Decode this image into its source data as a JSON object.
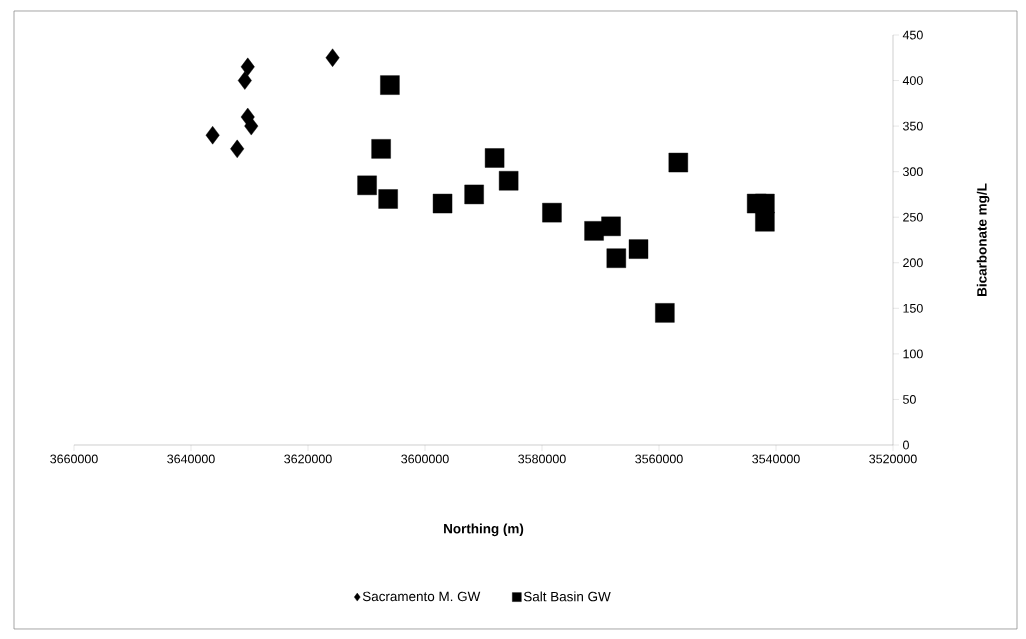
{
  "chart_data": {
    "type": "scatter",
    "xlabel": "Northing (m)",
    "ylabel": "Bicarbonate mg/L",
    "xlim": [
      3660000,
      3520000
    ],
    "xticks": [
      3660000,
      3640000,
      3620000,
      3600000,
      3580000,
      3560000,
      3540000,
      3520000
    ],
    "ylim": [
      0,
      450
    ],
    "yticks": [
      0,
      50,
      100,
      150,
      200,
      250,
      300,
      350,
      400,
      450
    ],
    "grid": false,
    "legend": "bottom",
    "series": [
      {
        "name": "Sacramento M. GW",
        "color": "#000000",
        "marker": "diamond",
        "x": [
          3636300,
          3632100,
          3630300,
          3630800,
          3630300,
          3629700,
          3615800
        ],
        "values": [
          340,
          325,
          415,
          400,
          360,
          350,
          425
        ]
      },
      {
        "name": "Salt Basin GW",
        "color": "#000000",
        "marker": "square",
        "x": [
          3606000,
          3607500,
          3609900,
          3606300,
          3597000,
          3591600,
          3588100,
          3585700,
          3578300,
          3571100,
          3568200,
          3567300,
          3563500,
          3559000,
          3556700,
          3543300,
          3541900,
          3541900
        ],
        "values": [
          395,
          325,
          285,
          270,
          265,
          275,
          315,
          290,
          255,
          235,
          240,
          205,
          215,
          145,
          310,
          265,
          265,
          245
        ]
      }
    ]
  }
}
